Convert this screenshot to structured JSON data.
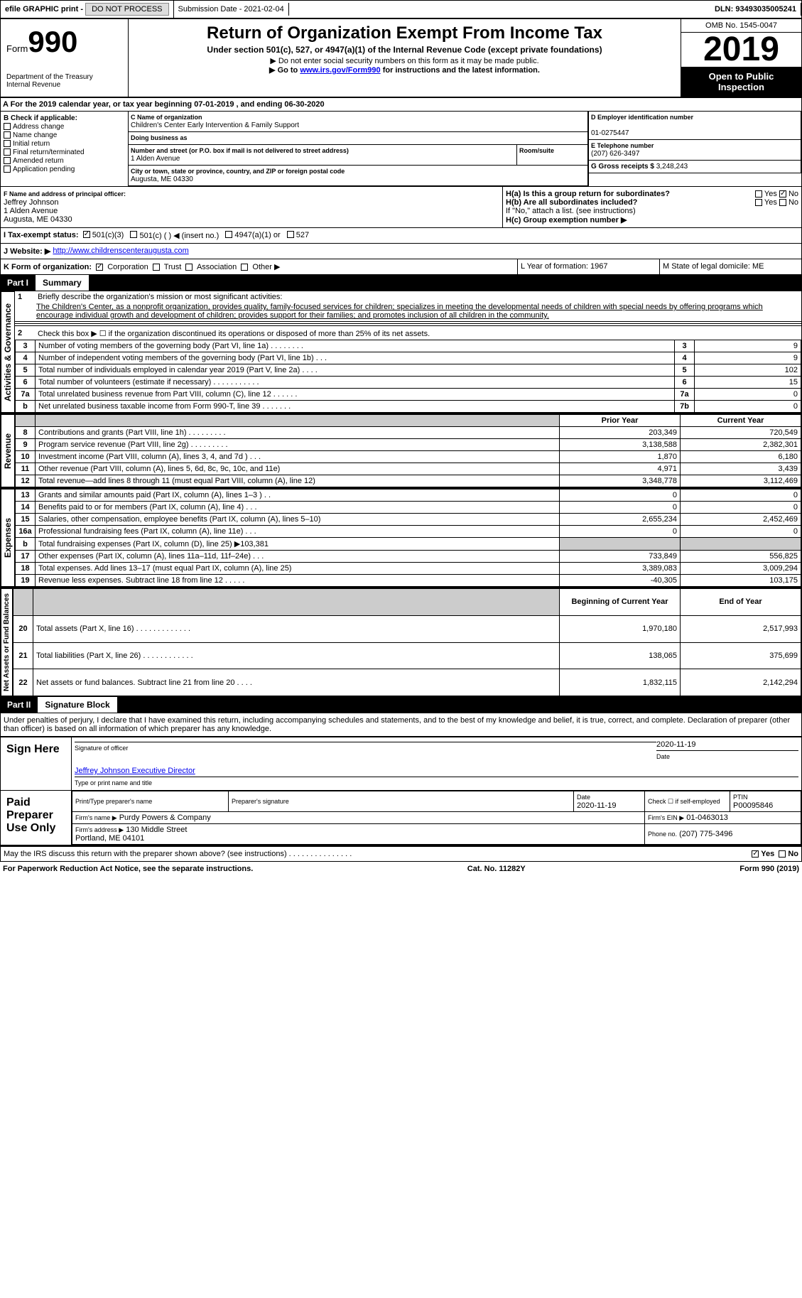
{
  "topbar": {
    "efile": "efile GRAPHIC print - ",
    "submission": "Submission Date - 2021-02-04",
    "dln": "DLN: 93493035005241"
  },
  "header": {
    "form": "Form",
    "num": "990",
    "dept": "Department of the Treasury\nInternal Revenue",
    "title": "Return of Organization Exempt From Income Tax",
    "sub1": "Under section 501(c), 527, or 4947(a)(1) of the Internal Revenue Code (except private foundations)",
    "sub2": "▶ Do not enter social security numbers on this form as it may be made public.",
    "sub3a": "▶ Go to ",
    "sub3link": "www.irs.gov/Form990",
    "sub3b": " for instructions and the latest information.",
    "omb": "OMB No. 1545-0047",
    "year": "2019",
    "inspect": "Open to Public Inspection"
  },
  "secA": "A For the 2019 calendar year, or tax year beginning 07-01-2019    , and ending 06-30-2020",
  "boxB": {
    "title": "B Check if applicable:",
    "items": [
      "Address change",
      "Name change",
      "Initial return",
      "Final return/terminated",
      "Amended return",
      "Application pending"
    ]
  },
  "boxC": {
    "lbl": "C Name of organization",
    "name": "Children's Center Early Intervention & Family Support",
    "dba": "Doing business as",
    "addr_lbl": "Number and street (or P.O. box if mail is not delivered to street address)",
    "addr": "1 Alden Avenue",
    "room": "Room/suite",
    "city_lbl": "City or town, state or province, country, and ZIP or foreign postal code",
    "city": "Augusta, ME  04330"
  },
  "boxD": {
    "lbl": "D Employer identification number",
    "ein": "01-0275447",
    "tel_lbl": "E Telephone number",
    "tel": "(207) 626-3497",
    "gross_lbl": "G Gross receipts $",
    "gross": "3,248,243"
  },
  "boxF": {
    "lbl": "F Name and address of principal officer:",
    "name": "Jeffrey Johnson",
    "addr": "1 Alden Avenue\nAugusta, ME  04330"
  },
  "boxH": {
    "a": "H(a)  Is this a group return for subordinates?",
    "b": "H(b)  Are all subordinates included?",
    "note": "If \"No,\" attach a list. (see instructions)",
    "c": "H(c)  Group exemption number ▶",
    "yes": "Yes",
    "no": "No"
  },
  "boxI": {
    "lbl": "I   Tax-exempt status:",
    "opts": [
      "501(c)(3)",
      "501(c) (   ) ◀ (insert no.)",
      "4947(a)(1) or",
      "527"
    ]
  },
  "boxJ": {
    "lbl": "J   Website: ▶",
    "url": "http://www.childrenscenteraugusta.com"
  },
  "boxK": {
    "lbl": "K Form of organization:",
    "opts": [
      "Corporation",
      "Trust",
      "Association",
      "Other ▶"
    ]
  },
  "boxL": "L Year of formation: 1967",
  "boxM": "M State of legal domicile: ME",
  "part1": {
    "num": "Part I",
    "title": "Summary",
    "tabs": [
      "Activities & Governance",
      "Revenue",
      "Expenses",
      "Net Assets or Fund Balances"
    ],
    "q1": "Briefly describe the organization's mission or most significant activities:",
    "mission": "The Children's Center, as a nonprofit organization, provides quality, family-focused services for children; specializes in meeting the developmental needs of children with special needs by offering programs which encourage individual growth and development of children; provides support for their families; and promotes inclusion of all children in the community.",
    "q2": "Check this box ▶ ☐  if the organization discontinued its operations or disposed of more than 25% of its net assets.",
    "lines_gov": [
      {
        "n": "3",
        "d": "Number of voting members of the governing body (Part VI, line 1a)  .  .  .  .  .  .  .  .",
        "c": "3",
        "v": "9"
      },
      {
        "n": "4",
        "d": "Number of independent voting members of the governing body (Part VI, line 1b)  .  .  .",
        "c": "4",
        "v": "9"
      },
      {
        "n": "5",
        "d": "Total number of individuals employed in calendar year 2019 (Part V, line 2a)  .  .  .  .",
        "c": "5",
        "v": "102"
      },
      {
        "n": "6",
        "d": "Total number of volunteers (estimate if necessary)  .  .  .  .  .  .  .  .  .  .  .",
        "c": "6",
        "v": "15"
      },
      {
        "n": "7a",
        "d": "Total unrelated business revenue from Part VIII, column (C), line 12  .  .  .  .  .  .",
        "c": "7a",
        "v": "0"
      },
      {
        "n": "b",
        "d": "Net unrelated business taxable income from Form 990-T, line 39  .  .  .  .  .  .  .",
        "c": "7b",
        "v": "0"
      }
    ],
    "h_prior": "Prior Year",
    "h_current": "Current Year",
    "rev": [
      {
        "n": "8",
        "d": "Contributions and grants (Part VIII, line 1h) .  .  .  .  .  .  .  .  .",
        "p": "203,349",
        "c": "720,549"
      },
      {
        "n": "9",
        "d": "Program service revenue (Part VIII, line 2g) .  .  .  .  .  .  .  .  .",
        "p": "3,138,588",
        "c": "2,382,301"
      },
      {
        "n": "10",
        "d": "Investment income (Part VIII, column (A), lines 3, 4, and 7d ) .  .  .",
        "p": "1,870",
        "c": "6,180"
      },
      {
        "n": "11",
        "d": "Other revenue (Part VIII, column (A), lines 5, 6d, 8c, 9c, 10c, and 11e)",
        "p": "4,971",
        "c": "3,439"
      },
      {
        "n": "12",
        "d": "Total revenue—add lines 8 through 11 (must equal Part VIII, column (A), line 12)",
        "p": "3,348,778",
        "c": "3,112,469"
      }
    ],
    "exp": [
      {
        "n": "13",
        "d": "Grants and similar amounts paid (Part IX, column (A), lines 1–3 ) .  .",
        "p": "0",
        "c": "0"
      },
      {
        "n": "14",
        "d": "Benefits paid to or for members (Part IX, column (A), line 4) .  .  .",
        "p": "0",
        "c": "0"
      },
      {
        "n": "15",
        "d": "Salaries, other compensation, employee benefits (Part IX, column (A), lines 5–10)",
        "p": "2,655,234",
        "c": "2,452,469"
      },
      {
        "n": "16a",
        "d": "Professional fundraising fees (Part IX, column (A), line 11e) .  .  .",
        "p": "0",
        "c": "0"
      },
      {
        "n": "b",
        "d": "Total fundraising expenses (Part IX, column (D), line 25) ▶103,381",
        "p": "",
        "c": "",
        "shade": true
      },
      {
        "n": "17",
        "d": "Other expenses (Part IX, column (A), lines 11a–11d, 11f–24e) .  .  .",
        "p": "733,849",
        "c": "556,825"
      },
      {
        "n": "18",
        "d": "Total expenses. Add lines 13–17 (must equal Part IX, column (A), line 25)",
        "p": "3,389,083",
        "c": "3,009,294"
      },
      {
        "n": "19",
        "d": "Revenue less expenses. Subtract line 18 from line 12 .  .  .  .  .",
        "p": "-40,305",
        "c": "103,175"
      }
    ],
    "h_begin": "Beginning of Current Year",
    "h_end": "End of Year",
    "net": [
      {
        "n": "20",
        "d": "Total assets (Part X, line 16) .  .  .  .  .  .  .  .  .  .  .  .  .",
        "p": "1,970,180",
        "c": "2,517,993"
      },
      {
        "n": "21",
        "d": "Total liabilities (Part X, line 26) .  .  .  .  .  .  .  .  .  .  .  .",
        "p": "138,065",
        "c": "375,699"
      },
      {
        "n": "22",
        "d": "Net assets or fund balances. Subtract line 21 from line 20 .  .  .  .",
        "p": "1,832,115",
        "c": "2,142,294"
      }
    ]
  },
  "part2": {
    "num": "Part II",
    "title": "Signature Block",
    "decl": "Under penalties of perjury, I declare that I have examined this return, including accompanying schedules and statements, and to the best of my knowledge and belief, it is true, correct, and complete. Declaration of preparer (other than officer) is based on all information of which preparer has any knowledge.",
    "sign_here": "Sign Here",
    "sig_officer": "Signature of officer",
    "sig_date": "2020-11-19",
    "date_lbl": "Date",
    "officer_name": "Jeffrey Johnson  Executive Director",
    "type_name": "Type or print name and title",
    "paid": "Paid Preparer Use Only",
    "prep_name_lbl": "Print/Type preparer's name",
    "prep_sig_lbl": "Preparer's signature",
    "prep_date_lbl": "Date",
    "prep_date": "2020-11-19",
    "self_emp": "Check ☐ if self-employed",
    "ptin_lbl": "PTIN",
    "ptin": "P00095846",
    "firm_name_lbl": "Firm's name   ▶",
    "firm_name": "Purdy Powers & Company",
    "firm_ein_lbl": "Firm's EIN ▶",
    "firm_ein": "01-0463013",
    "firm_addr_lbl": "Firm's address ▶",
    "firm_addr": "130 Middle Street\nPortland, ME  04101",
    "phone_lbl": "Phone no.",
    "phone": "(207) 775-3496",
    "irs_q": "May the IRS discuss this return with the preparer shown above? (see instructions)  .  .  .  .  .  .  .  .  .  .  .  .  .  .  .",
    "yes": "Yes",
    "no": "No"
  },
  "footer": {
    "left": "For Paperwork Reduction Act Notice, see the separate instructions.",
    "mid": "Cat. No. 11282Y",
    "right": "Form 990 (2019)"
  }
}
